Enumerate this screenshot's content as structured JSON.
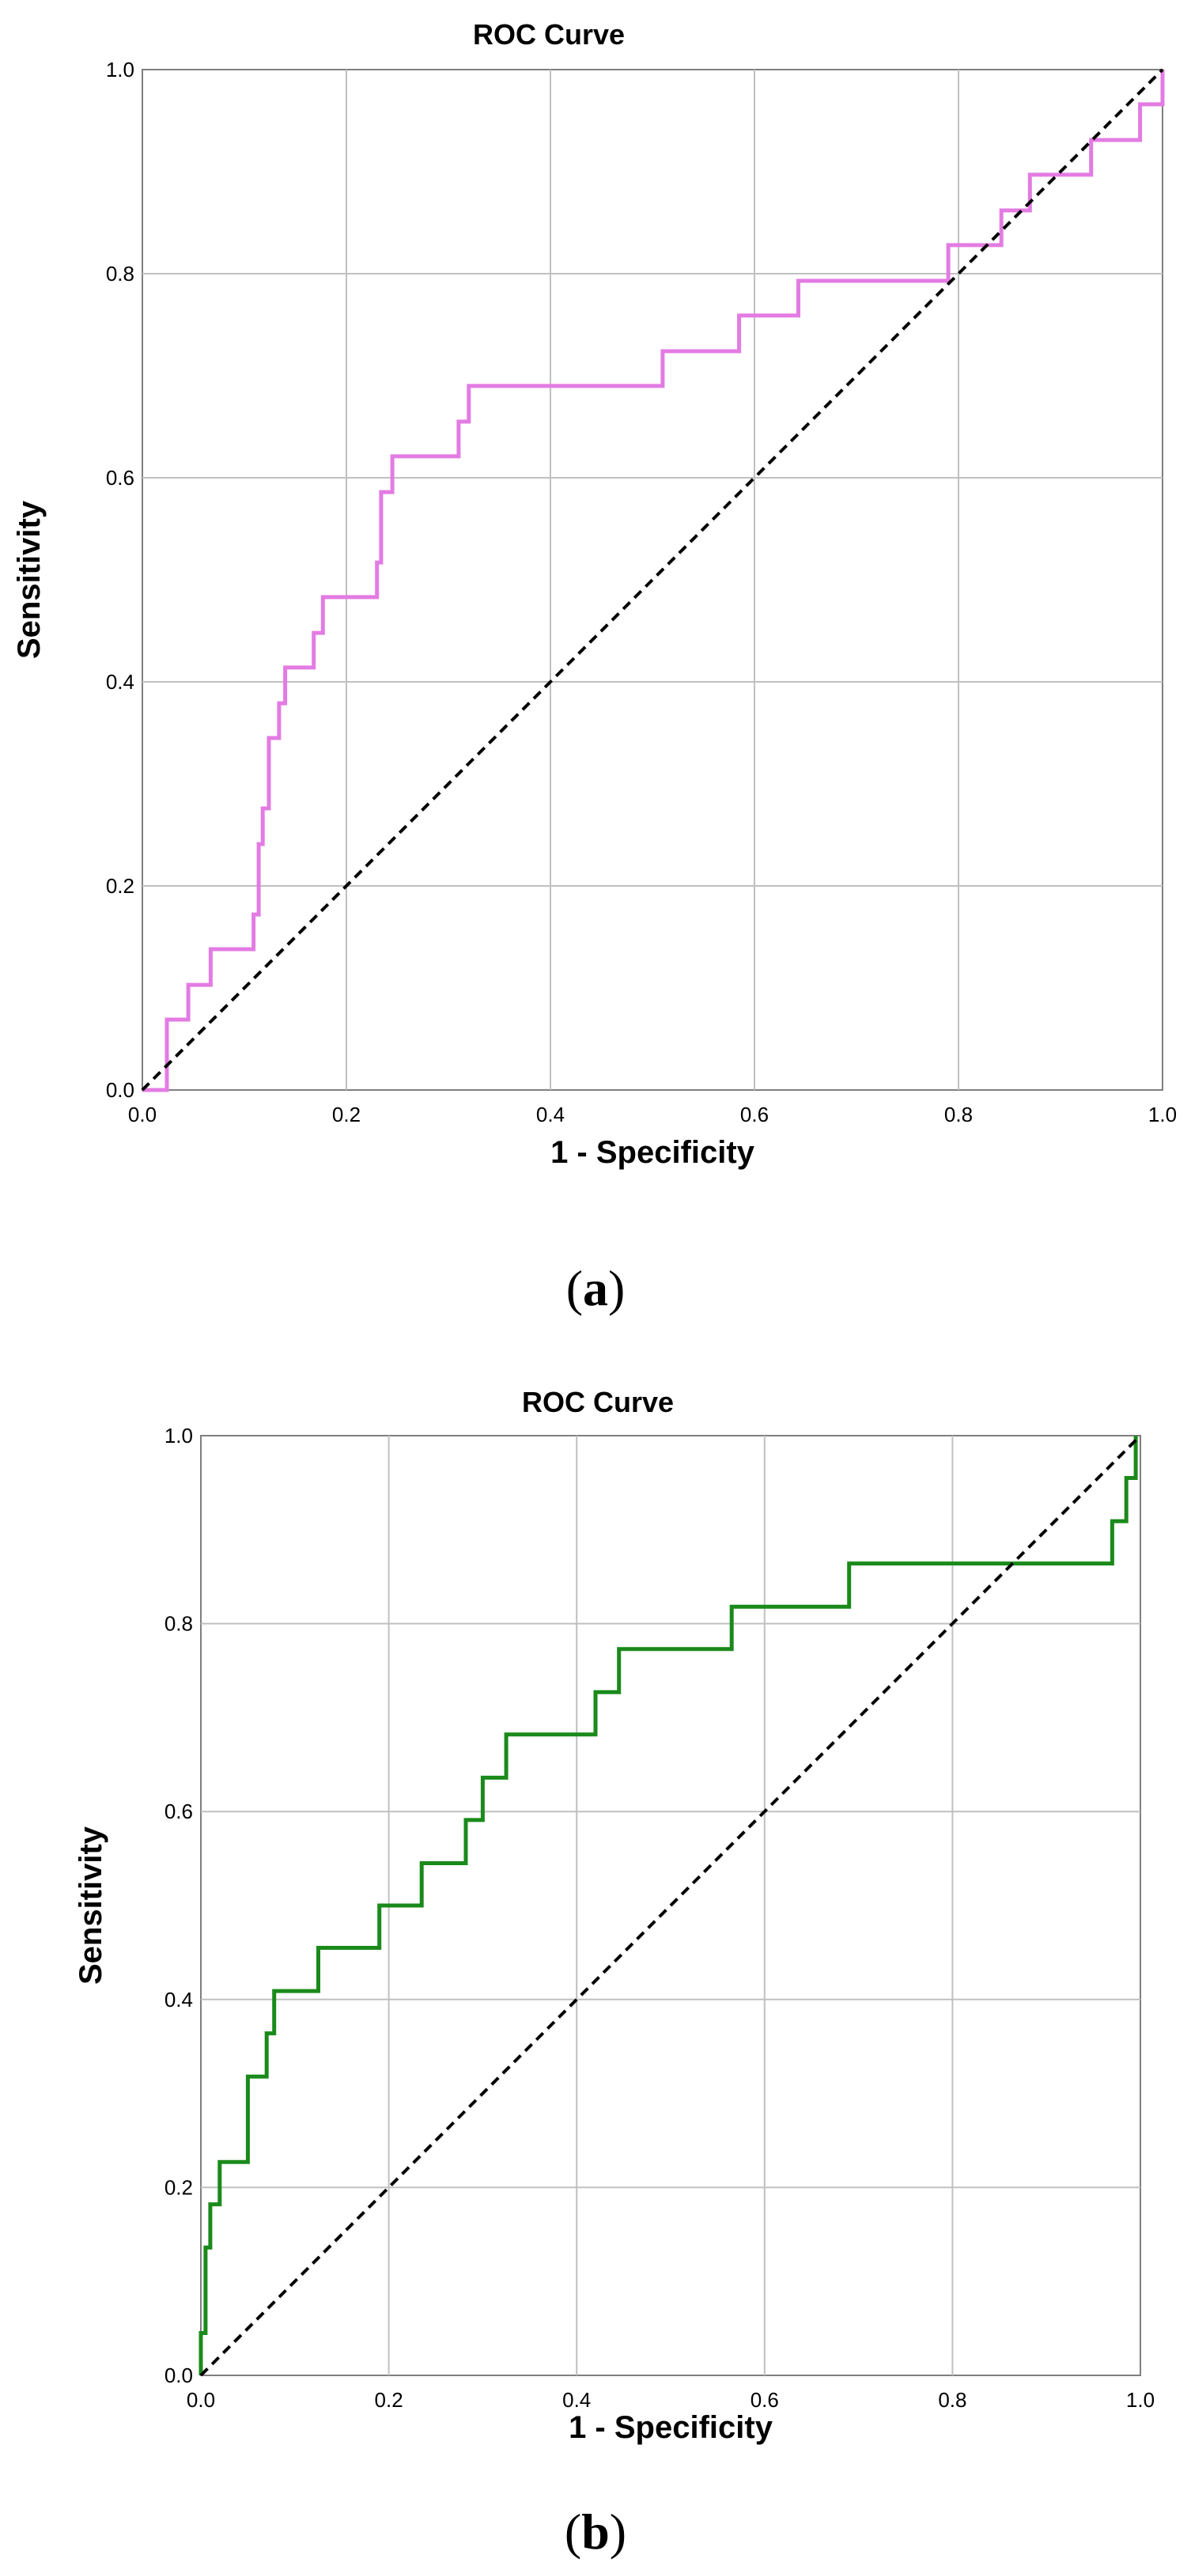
{
  "chart_data": [
    {
      "type": "line",
      "title": "ROC Curve",
      "xlabel": "1 - Specificity",
      "ylabel": "Sensitivity",
      "xlim": [
        0,
        1
      ],
      "ylim": [
        0,
        1
      ],
      "grid": true,
      "xticks": [
        "0.0",
        "0.2",
        "0.4",
        "0.6",
        "0.8",
        "1.0"
      ],
      "yticks": [
        "0.0",
        "0.2",
        "0.4",
        "0.6",
        "0.8",
        "1.0"
      ],
      "caption": {
        "open": "(",
        "letter": "a",
        "close": ")"
      },
      "series": [
        {
          "name": "ROC",
          "color": "#e37be3",
          "x": [
            0,
            0.024,
            0.024,
            0.045,
            0.045,
            0.067,
            0.067,
            0.109,
            0.109,
            0.114,
            0.114,
            0.118,
            0.118,
            0.124,
            0.124,
            0.134,
            0.134,
            0.14,
            0.14,
            0.168,
            0.168,
            0.177,
            0.177,
            0.186,
            0.186,
            0.196,
            0.196,
            0.23,
            0.23,
            0.234,
            0.234,
            0.245,
            0.245,
            0.31,
            0.31,
            0.32,
            0.32,
            0.51,
            0.51,
            0.585,
            0.585,
            0.643,
            0.643,
            0.79,
            0.79,
            0.842,
            0.842,
            0.855,
            0.855,
            0.87,
            0.87,
            0.93,
            0.93,
            0.978,
            0.978,
            1.0,
            1.0
          ],
          "y": [
            0,
            0,
            0.069,
            0.069,
            0.103,
            0.103,
            0.138,
            0.138,
            0.172,
            0.172,
            0.241,
            0.241,
            0.276,
            0.276,
            0.345,
            0.345,
            0.379,
            0.379,
            0.414,
            0.414,
            0.448,
            0.448,
            0.483,
            0.483,
            0.483,
            0.483,
            0.483,
            0.483,
            0.517,
            0.517,
            0.586,
            0.586,
            0.621,
            0.621,
            0.655,
            0.655,
            0.69,
            0.69,
            0.724,
            0.724,
            0.759,
            0.759,
            0.793,
            0.793,
            0.828,
            0.828,
            0.862,
            0.862,
            0.862,
            0.862,
            0.897,
            0.897,
            0.931,
            0.931,
            0.966,
            0.966,
            1.0
          ]
        },
        {
          "name": "Reference line",
          "color": "#000000",
          "dashed": true,
          "x": [
            0,
            1
          ],
          "y": [
            0,
            1
          ]
        }
      ]
    },
    {
      "type": "line",
      "title": "ROC Curve",
      "xlabel": "1 - Specificity",
      "ylabel": "Sensitivity",
      "xlim": [
        0,
        1
      ],
      "ylim": [
        0,
        1
      ],
      "grid": true,
      "xticks": [
        "0.0",
        "0.2",
        "0.4",
        "0.6",
        "0.8",
        "1.0"
      ],
      "yticks": [
        "0.0",
        "0.2",
        "0.4",
        "0.6",
        "0.8",
        "1.0"
      ],
      "caption": {
        "open": "(",
        "letter": "b",
        "close": ")"
      },
      "series": [
        {
          "name": "ROC",
          "color": "#1a8a1a",
          "x": [
            0,
            0,
            0.005,
            0.005,
            0.01,
            0.01,
            0.015,
            0.015,
            0.02,
            0.02,
            0.05,
            0.05,
            0.07,
            0.07,
            0.078,
            0.078,
            0.125,
            0.125,
            0.19,
            0.19,
            0.235,
            0.235,
            0.282,
            0.282,
            0.3,
            0.3,
            0.325,
            0.325,
            0.42,
            0.42,
            0.445,
            0.445,
            0.565,
            0.565,
            0.69,
            0.69,
            0.97,
            0.97,
            0.985,
            0.985,
            0.995,
            0.995
          ],
          "y": [
            0,
            0.045,
            0.045,
            0.136,
            0.136,
            0.182,
            0.182,
            0.182,
            0.182,
            0.227,
            0.227,
            0.318,
            0.318,
            0.364,
            0.364,
            0.409,
            0.409,
            0.455,
            0.455,
            0.5,
            0.5,
            0.545,
            0.545,
            0.591,
            0.591,
            0.636,
            0.636,
            0.682,
            0.682,
            0.727,
            0.727,
            0.773,
            0.773,
            0.818,
            0.818,
            0.864,
            0.864,
            0.909,
            0.909,
            0.955,
            0.955,
            1.0
          ]
        },
        {
          "name": "Reference line",
          "color": "#000000",
          "dashed": true,
          "x": [
            0,
            1
          ],
          "y": [
            0,
            1
          ]
        }
      ]
    }
  ]
}
